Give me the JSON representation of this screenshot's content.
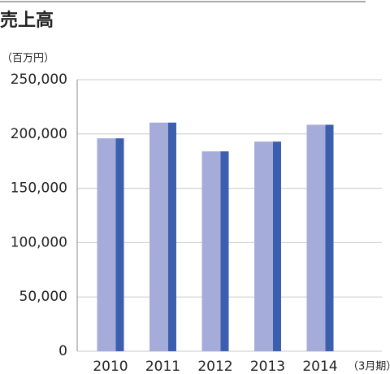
{
  "chart_data": {
    "type": "bar",
    "title": "売上高",
    "y_unit": "（百万円）",
    "x_unit": "（3月期）",
    "categories": [
      "2010",
      "2011",
      "2012",
      "2013",
      "2014"
    ],
    "values": [
      196000,
      210500,
      184000,
      193000,
      208500
    ],
    "color": "#a6acd9",
    "edge_color": "#3b5fae",
    "ylim": [
      0,
      250000
    ],
    "yticks": [
      0,
      {
        "value": 50000,
        "label": "50,000"
      },
      {
        "value": 100000,
        "label": "100,000"
      },
      {
        "value": 150000,
        "label": "150,000"
      },
      {
        "value": 200000,
        "label": "200,000"
      },
      {
        "value": 250000,
        "label": "250,000"
      }
    ],
    "grid": true
  }
}
